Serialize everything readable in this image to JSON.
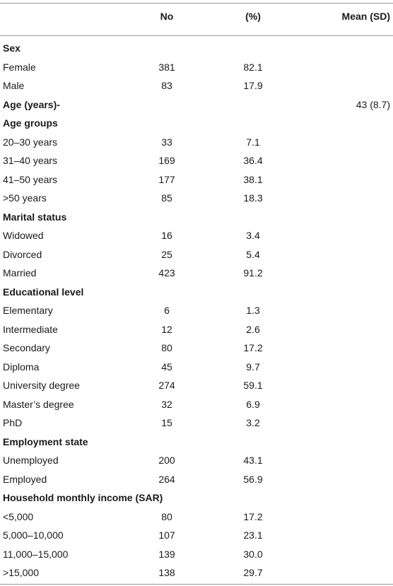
{
  "table": {
    "headers": {
      "label": "",
      "no": "No",
      "pct": "(%)",
      "mean": "Mean (SD)"
    },
    "rows": [
      {
        "type": "section",
        "label": "Sex",
        "no": "",
        "pct": "",
        "mean": ""
      },
      {
        "type": "data",
        "label": "Female",
        "no": "381",
        "pct": "82.1",
        "mean": ""
      },
      {
        "type": "data",
        "label": "Male",
        "no": "83",
        "pct": "17.9",
        "mean": ""
      },
      {
        "type": "section",
        "label": "Age (years)-",
        "no": "",
        "pct": "",
        "mean": "43 (8.7)"
      },
      {
        "type": "section",
        "label": "Age groups",
        "no": "",
        "pct": "",
        "mean": ""
      },
      {
        "type": "data",
        "label": "20–30 years",
        "no": "33",
        "pct": "7.1",
        "mean": ""
      },
      {
        "type": "data",
        "label": "31–40 years",
        "no": "169",
        "pct": "36.4",
        "mean": ""
      },
      {
        "type": "data",
        "label": "41–50 years",
        "no": "177",
        "pct": "38.1",
        "mean": ""
      },
      {
        "type": "data",
        "label": ">50 years",
        "no": "85",
        "pct": "18.3",
        "mean": ""
      },
      {
        "type": "section",
        "label": "Marital status",
        "no": "",
        "pct": "",
        "mean": ""
      },
      {
        "type": "data",
        "label": "Widowed",
        "no": "16",
        "pct": "3.4",
        "mean": ""
      },
      {
        "type": "data",
        "label": "Divorced",
        "no": "25",
        "pct": "5.4",
        "mean": ""
      },
      {
        "type": "data",
        "label": "Married",
        "no": "423",
        "pct": "91.2",
        "mean": ""
      },
      {
        "type": "section",
        "label": "Educational level",
        "no": "",
        "pct": "",
        "mean": ""
      },
      {
        "type": "data",
        "label": "Elementary",
        "no": "6",
        "pct": "1.3",
        "mean": ""
      },
      {
        "type": "data",
        "label": "Intermediate",
        "no": "12",
        "pct": "2.6",
        "mean": ""
      },
      {
        "type": "data",
        "label": "Secondary",
        "no": "80",
        "pct": "17.2",
        "mean": ""
      },
      {
        "type": "data",
        "label": "Diploma",
        "no": "45",
        "pct": "9.7",
        "mean": ""
      },
      {
        "type": "data",
        "label": "University degree",
        "no": "274",
        "pct": "59.1",
        "mean": ""
      },
      {
        "type": "data",
        "label": "Master’s degree",
        "no": "32",
        "pct": "6.9",
        "mean": ""
      },
      {
        "type": "data",
        "label": "PhD",
        "no": "15",
        "pct": "3.2",
        "mean": ""
      },
      {
        "type": "section",
        "label": "Employment state",
        "no": "",
        "pct": "",
        "mean": ""
      },
      {
        "type": "data",
        "label": "Unemployed",
        "no": "200",
        "pct": "43.1",
        "mean": ""
      },
      {
        "type": "data",
        "label": "Employed",
        "no": "264",
        "pct": "56.9",
        "mean": ""
      },
      {
        "type": "section",
        "label": "Household monthly income (SAR)",
        "no": "",
        "pct": "",
        "mean": ""
      },
      {
        "type": "data",
        "label": "<5,000",
        "no": "80",
        "pct": "17.2",
        "mean": ""
      },
      {
        "type": "data",
        "label": "5,000–10,000",
        "no": "107",
        "pct": "23.1",
        "mean": ""
      },
      {
        "type": "data",
        "label": "11,000–15,000",
        "no": "139",
        "pct": "30.0",
        "mean": ""
      },
      {
        "type": "data",
        "label": ">15,000",
        "no": "138",
        "pct": "29.7",
        "mean": ""
      }
    ]
  }
}
